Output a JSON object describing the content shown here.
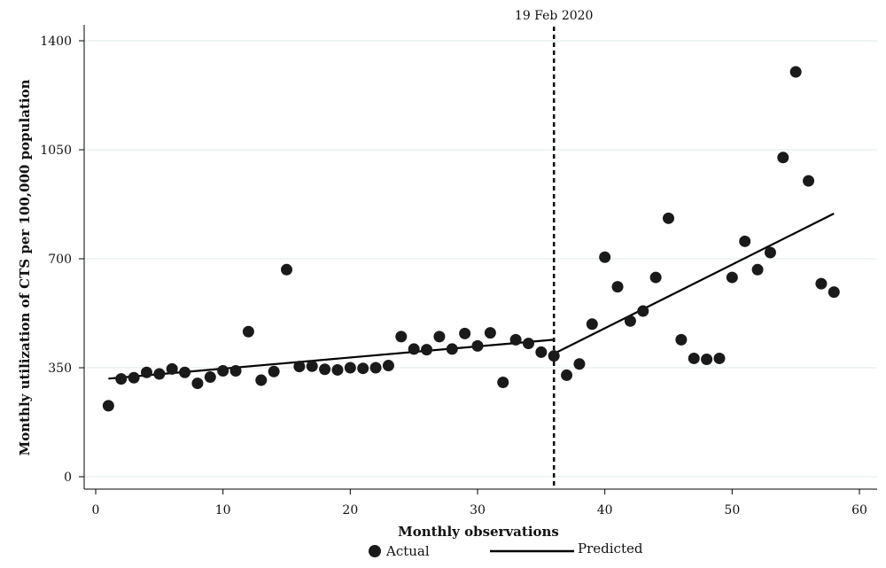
{
  "chart_data": {
    "type": "scatter",
    "title": "",
    "xlabel": "Monthly observations",
    "ylabel": "Monthly utilization of CTS per 100,000 population",
    "xlim": [
      0,
      61
    ],
    "ylim": [
      0,
      1400
    ],
    "xticks": [
      0,
      10,
      20,
      30,
      40,
      50,
      60
    ],
    "yticks": [
      0,
      350,
      700,
      1050,
      1400
    ],
    "grid": "horizontal",
    "annotation": {
      "x": 36,
      "label": "19 Feb 2020",
      "style": "dashed-vertical-line"
    },
    "legend": {
      "placement": "bottom",
      "actual_label": "Actual",
      "predicted_label": "Predicted"
    },
    "series": [
      {
        "name": "Actual",
        "kind": "scatter",
        "x": [
          1,
          2,
          3,
          4,
          5,
          6,
          7,
          8,
          9,
          10,
          11,
          12,
          13,
          14,
          15,
          16,
          17,
          18,
          19,
          20,
          21,
          22,
          23,
          24,
          25,
          26,
          27,
          28,
          29,
          30,
          31,
          32,
          33,
          34,
          35,
          36,
          37,
          38,
          39,
          40,
          41,
          42,
          43,
          44,
          45,
          46,
          47,
          48,
          49,
          50,
          51,
          52,
          53,
          54,
          55,
          56,
          57,
          58
        ],
        "y": [
          228,
          314,
          318,
          335,
          330,
          346,
          335,
          300,
          320,
          340,
          340,
          466,
          310,
          338,
          665,
          354,
          355,
          345,
          343,
          350,
          348,
          350,
          357,
          450,
          410,
          408,
          450,
          410,
          460,
          420,
          462,
          303,
          440,
          428,
          400,
          388,
          326,
          362,
          490,
          705,
          610,
          500,
          532,
          640,
          830,
          440,
          380,
          377,
          380,
          640,
          756,
          665,
          720,
          1025,
          1300,
          950,
          620,
          593
        ]
      },
      {
        "name": "Predicted",
        "kind": "line",
        "segments": [
          {
            "x": [
              1,
              36
            ],
            "y": [
              315,
              440
            ]
          },
          {
            "x": [
              36,
              58
            ],
            "y": [
              395,
              845
            ]
          }
        ]
      }
    ]
  }
}
